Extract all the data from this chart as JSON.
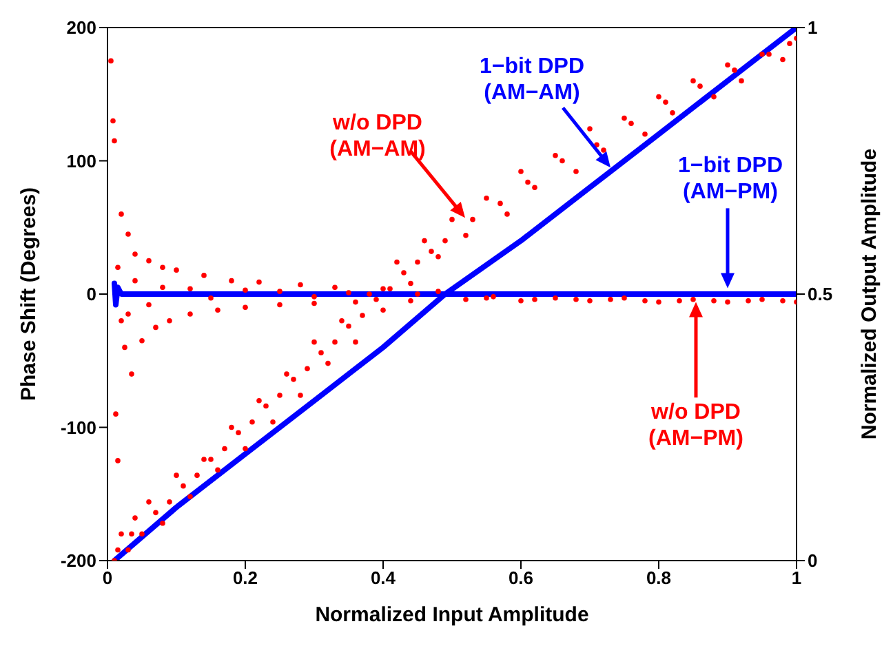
{
  "chart_data": {
    "type": "scatter",
    "xlabel": "Normalized Input Amplitude",
    "ylabel": "Phase Shift (Degrees)",
    "y2label": "Normalized Output Amplitude",
    "xlim": [
      0,
      1
    ],
    "xticks": [
      0,
      0.2,
      0.4,
      0.6,
      0.8,
      1
    ],
    "ylim": [
      -200,
      200
    ],
    "yticks": [
      -200,
      -100,
      0,
      100,
      200
    ],
    "y2lim": [
      0,
      1
    ],
    "y2ticks": [
      0,
      0.5,
      1
    ],
    "series": [
      {
        "axis": "y2",
        "color": "#ff0000",
        "marker": "circle",
        "x": [
          0.01,
          0.02,
          0.03,
          0.04,
          0.05,
          0.06,
          0.08,
          0.1,
          0.12,
          0.14,
          0.16,
          0.18,
          0.2,
          0.22,
          0.24,
          0.26,
          0.28,
          0.3,
          0.32,
          0.34,
          0.36,
          0.38,
          0.4,
          0.42,
          0.44,
          0.46,
          0.48,
          0.5,
          0.52,
          0.55,
          0.58,
          0.6,
          0.62,
          0.65,
          0.68,
          0.7,
          0.72,
          0.75,
          0.78,
          0.8,
          0.82,
          0.85,
          0.88,
          0.9,
          0.92,
          0.95,
          0.98,
          1,
          0.015,
          0.035,
          0.07,
          0.09,
          0.11,
          0.13,
          0.15,
          0.17,
          0.19,
          0.21,
          0.23,
          0.25,
          0.27,
          0.29,
          0.31,
          0.33,
          0.35,
          0.37,
          0.39,
          0.41,
          0.43,
          0.45,
          0.47,
          0.49,
          0.53,
          0.57,
          0.61,
          0.66,
          0.71,
          0.76,
          0.81,
          0.86,
          0.91,
          0.96,
          0.99
        ],
        "values": [
          0.0,
          0.05,
          0.02,
          0.08,
          0.05,
          0.11,
          0.07,
          0.16,
          0.12,
          0.19,
          0.17,
          0.25,
          0.21,
          0.3,
          0.26,
          0.35,
          0.31,
          0.41,
          0.37,
          0.45,
          0.41,
          0.5,
          0.47,
          0.56,
          0.52,
          0.6,
          0.57,
          0.64,
          0.61,
          0.68,
          0.65,
          0.73,
          0.7,
          0.76,
          0.73,
          0.81,
          0.77,
          0.83,
          0.8,
          0.87,
          0.84,
          0.9,
          0.87,
          0.93,
          0.9,
          0.95,
          0.94,
          0.98,
          0.02,
          0.05,
          0.09,
          0.11,
          0.14,
          0.16,
          0.19,
          0.21,
          0.24,
          0.26,
          0.29,
          0.31,
          0.34,
          0.36,
          0.39,
          0.41,
          0.44,
          0.46,
          0.49,
          0.51,
          0.54,
          0.56,
          0.58,
          0.6,
          0.64,
          0.67,
          0.71,
          0.75,
          0.78,
          0.82,
          0.86,
          0.89,
          0.92,
          0.95,
          0.97
        ]
      },
      {
        "type": "line",
        "axis": "y2",
        "color": "#0000ff",
        "marker": "none",
        "x": [
          0.01,
          0.1,
          0.2,
          0.3,
          0.4,
          0.49,
          0.6,
          0.7,
          0.8,
          0.9,
          1
        ],
        "values": [
          0.0,
          0.1,
          0.2,
          0.3,
          0.4,
          0.5,
          0.6,
          0.7,
          0.8,
          0.9,
          1.0
        ]
      },
      {
        "type": "line",
        "axis": "y",
        "color": "#0000ff",
        "marker": "none",
        "x": [
          0.01,
          0.012,
          0.015,
          0.02,
          0.05,
          0.2,
          0.4,
          0.6,
          0.8,
          1
        ],
        "values": [
          8,
          -8,
          5,
          0,
          0,
          0,
          0,
          0,
          0,
          0
        ]
      },
      {
        "axis": "y",
        "color": "#ff0000",
        "marker": "circle",
        "x": [
          0.005,
          0.008,
          0.01,
          0.012,
          0.015,
          0.02,
          0.025,
          0.03,
          0.035,
          0.04,
          0.05,
          0.06,
          0.07,
          0.08,
          0.09,
          0.1,
          0.12,
          0.14,
          0.16,
          0.18,
          0.2,
          0.22,
          0.25,
          0.28,
          0.3,
          0.33,
          0.36,
          0.4,
          0.44,
          0.48,
          0.52,
          0.56,
          0.6,
          0.65,
          0.7,
          0.75,
          0.8,
          0.85,
          0.9,
          0.95,
          1,
          0.015,
          0.02,
          0.03,
          0.04,
          0.06,
          0.08,
          0.12,
          0.15,
          0.2,
          0.25,
          0.3,
          0.35,
          0.45,
          0.55,
          0.62,
          0.68,
          0.73,
          0.78,
          0.83,
          0.88,
          0.93,
          0.98
        ],
        "values": [
          175,
          130,
          115,
          -90,
          -125,
          60,
          -40,
          45,
          -60,
          30,
          -35,
          25,
          -25,
          20,
          -20,
          18,
          -15,
          14,
          -12,
          10,
          -10,
          9,
          -8,
          7,
          -7,
          5,
          -6,
          4,
          -5,
          2,
          -4,
          -2,
          -5,
          -3,
          -5,
          -3,
          -6,
          -4,
          -6,
          -4,
          -6,
          20,
          -20,
          -15,
          10,
          -8,
          5,
          4,
          -3,
          3,
          2,
          -2,
          1,
          0,
          -3,
          -4,
          -4,
          -4,
          -5,
          -5,
          -5,
          -5,
          -5
        ]
      }
    ],
    "annotations": [
      "w/o DPD\n(AM−AM)",
      {
        "text": "1−bit DPD\n(AM−AM)",
        "x": 0.73,
        "y": 95
      },
      "1−bit DPD\n(AM−PM)",
      {
        "text": "w/o DPD\n(AM−PM)",
        "x": 0.854,
        "y": -6
      }
    ]
  }
}
